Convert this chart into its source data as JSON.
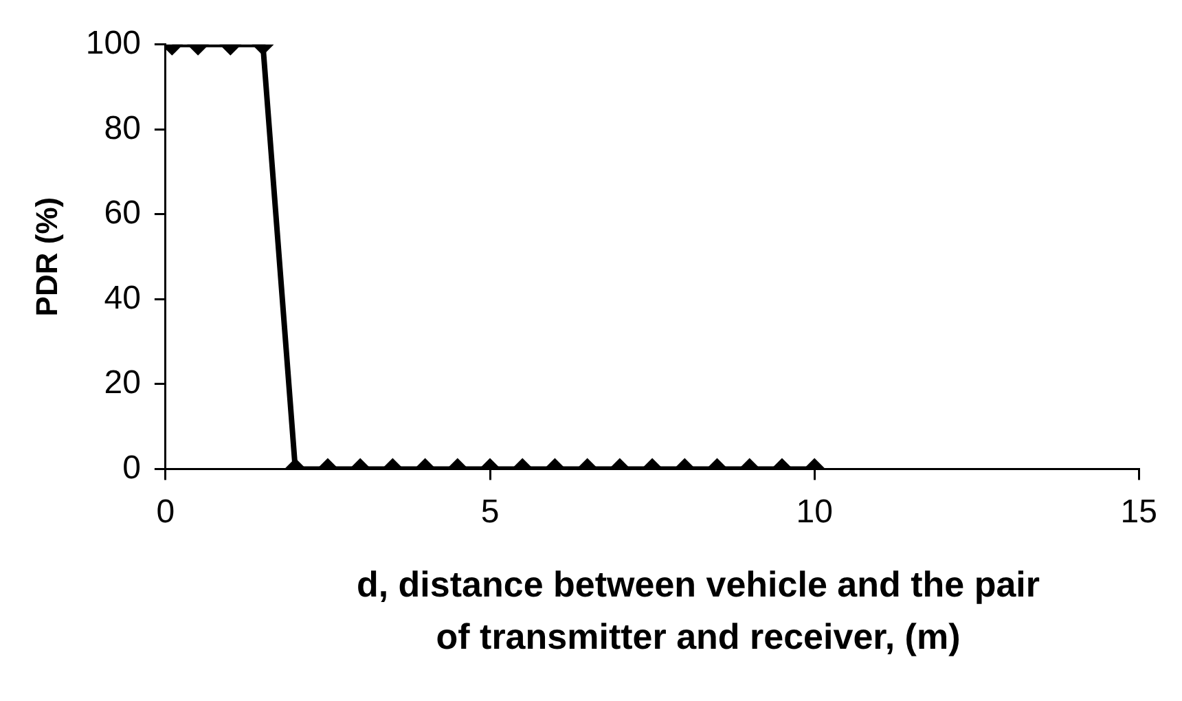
{
  "chart_data": {
    "type": "line",
    "xlabel": "d, distance between vehicle and the pair of transmitter and receiver, (m)",
    "ylabel": "PDR (%)",
    "series": [
      {
        "color": "#000000",
        "x": [
          0.1,
          0.5,
          1,
          1.5,
          2,
          2.5,
          3,
          3.5,
          4,
          4.5,
          5,
          5.5,
          6,
          6.5,
          7,
          7.5,
          8,
          8.5,
          9,
          9.5,
          10
        ],
        "values": [
          100,
          100,
          100,
          100,
          0,
          0,
          0,
          0,
          0,
          0,
          0,
          0,
          0,
          0,
          0,
          0,
          0,
          0,
          0,
          0,
          0
        ]
      }
    ],
    "xlim": [
      0,
      15
    ],
    "xticks": [
      0,
      5,
      10,
      15
    ],
    "ylim": [
      0,
      100
    ],
    "yticks": [
      0,
      20,
      40,
      60,
      80,
      100
    ],
    "grid": false,
    "legend": false,
    "marker": "diamond",
    "line_style": "solid"
  }
}
